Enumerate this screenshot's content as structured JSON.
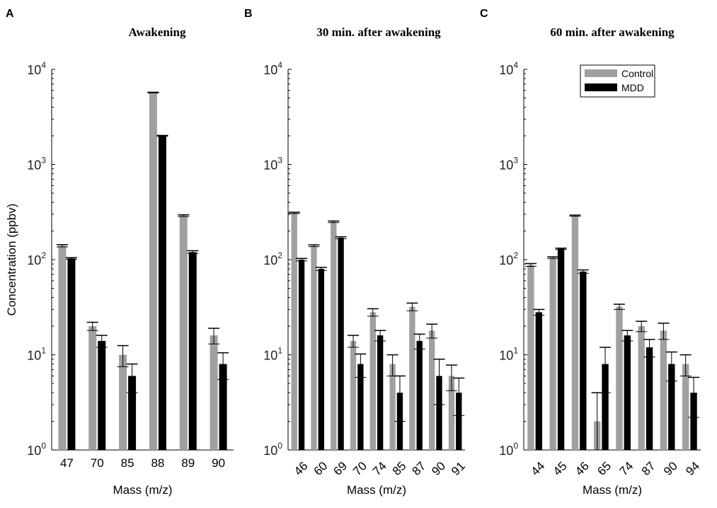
{
  "colors": {
    "control": "#a0a0a0",
    "mdd": "#000000"
  },
  "chart_data": [
    {
      "type": "bar",
      "panel_letter": "A",
      "title": "Awakening",
      "xlabel": "Mass (m/z)",
      "ylabel": "Concentration (ppbv)",
      "yscale": "log",
      "ylim": [
        1,
        10000
      ],
      "ytick_labels": [
        "10^0",
        "10^1",
        "10^2",
        "10^3",
        "10^4"
      ],
      "categories": [
        "47",
        "70",
        "85",
        "88",
        "89",
        "90"
      ],
      "series": [
        {
          "name": "Control",
          "values": [
            140,
            20,
            10,
            5700,
            290,
            16
          ],
          "errors": [
            4,
            2,
            2.5,
            50,
            6,
            3
          ]
        },
        {
          "name": "MDD",
          "values": [
            103,
            14,
            6,
            2000,
            120,
            8
          ],
          "errors": [
            2,
            2,
            2,
            20,
            4,
            2.5
          ]
        }
      ]
    },
    {
      "type": "bar",
      "panel_letter": "B",
      "title": "30 min. after awakening",
      "xlabel": "Mass (m/z)",
      "ylabel": "",
      "yscale": "log",
      "ylim": [
        1,
        10000
      ],
      "ytick_labels": [
        "10^0",
        "10^1",
        "10^2",
        "10^3",
        "10^4"
      ],
      "categories": [
        "46",
        "60",
        "69",
        "70",
        "74",
        "85",
        "87",
        "90",
        "91"
      ],
      "series": [
        {
          "name": "Control",
          "values": [
            310,
            140,
            250,
            14,
            28,
            8,
            32,
            18,
            6
          ],
          "errors": [
            5,
            3,
            5,
            2,
            2.5,
            2,
            3,
            3,
            1.8
          ]
        },
        {
          "name": "MDD",
          "values": [
            100,
            80,
            170,
            8,
            16,
            4,
            14,
            6,
            4
          ],
          "errors": [
            3,
            3,
            4,
            2.2,
            2,
            2,
            2.5,
            3,
            1.7
          ]
        }
      ]
    },
    {
      "type": "bar",
      "panel_letter": "C",
      "title": "60 min. after awakening",
      "xlabel": "Mass (m/z)",
      "ylabel": "",
      "yscale": "log",
      "ylim": [
        1,
        10000
      ],
      "ytick_labels": [
        "10^0",
        "10^1",
        "10^2",
        "10^3",
        "10^4"
      ],
      "categories": [
        "44",
        "45",
        "46",
        "65",
        "74",
        "87",
        "90",
        "94"
      ],
      "series": [
        {
          "name": "Control",
          "values": [
            88,
            105,
            290,
            2,
            32,
            20,
            18,
            8
          ],
          "errors": [
            3,
            2,
            4,
            2,
            2,
            2.5,
            3.5,
            2
          ]
        },
        {
          "name": "MDD",
          "values": [
            28,
            130,
            75,
            8,
            16,
            12,
            8,
            4
          ],
          "errors": [
            2,
            2,
            3,
            4,
            2,
            2.5,
            2.7,
            1.8
          ]
        }
      ],
      "legend": {
        "position": "top-right",
        "entries": [
          "Control",
          "MDD"
        ]
      }
    }
  ]
}
